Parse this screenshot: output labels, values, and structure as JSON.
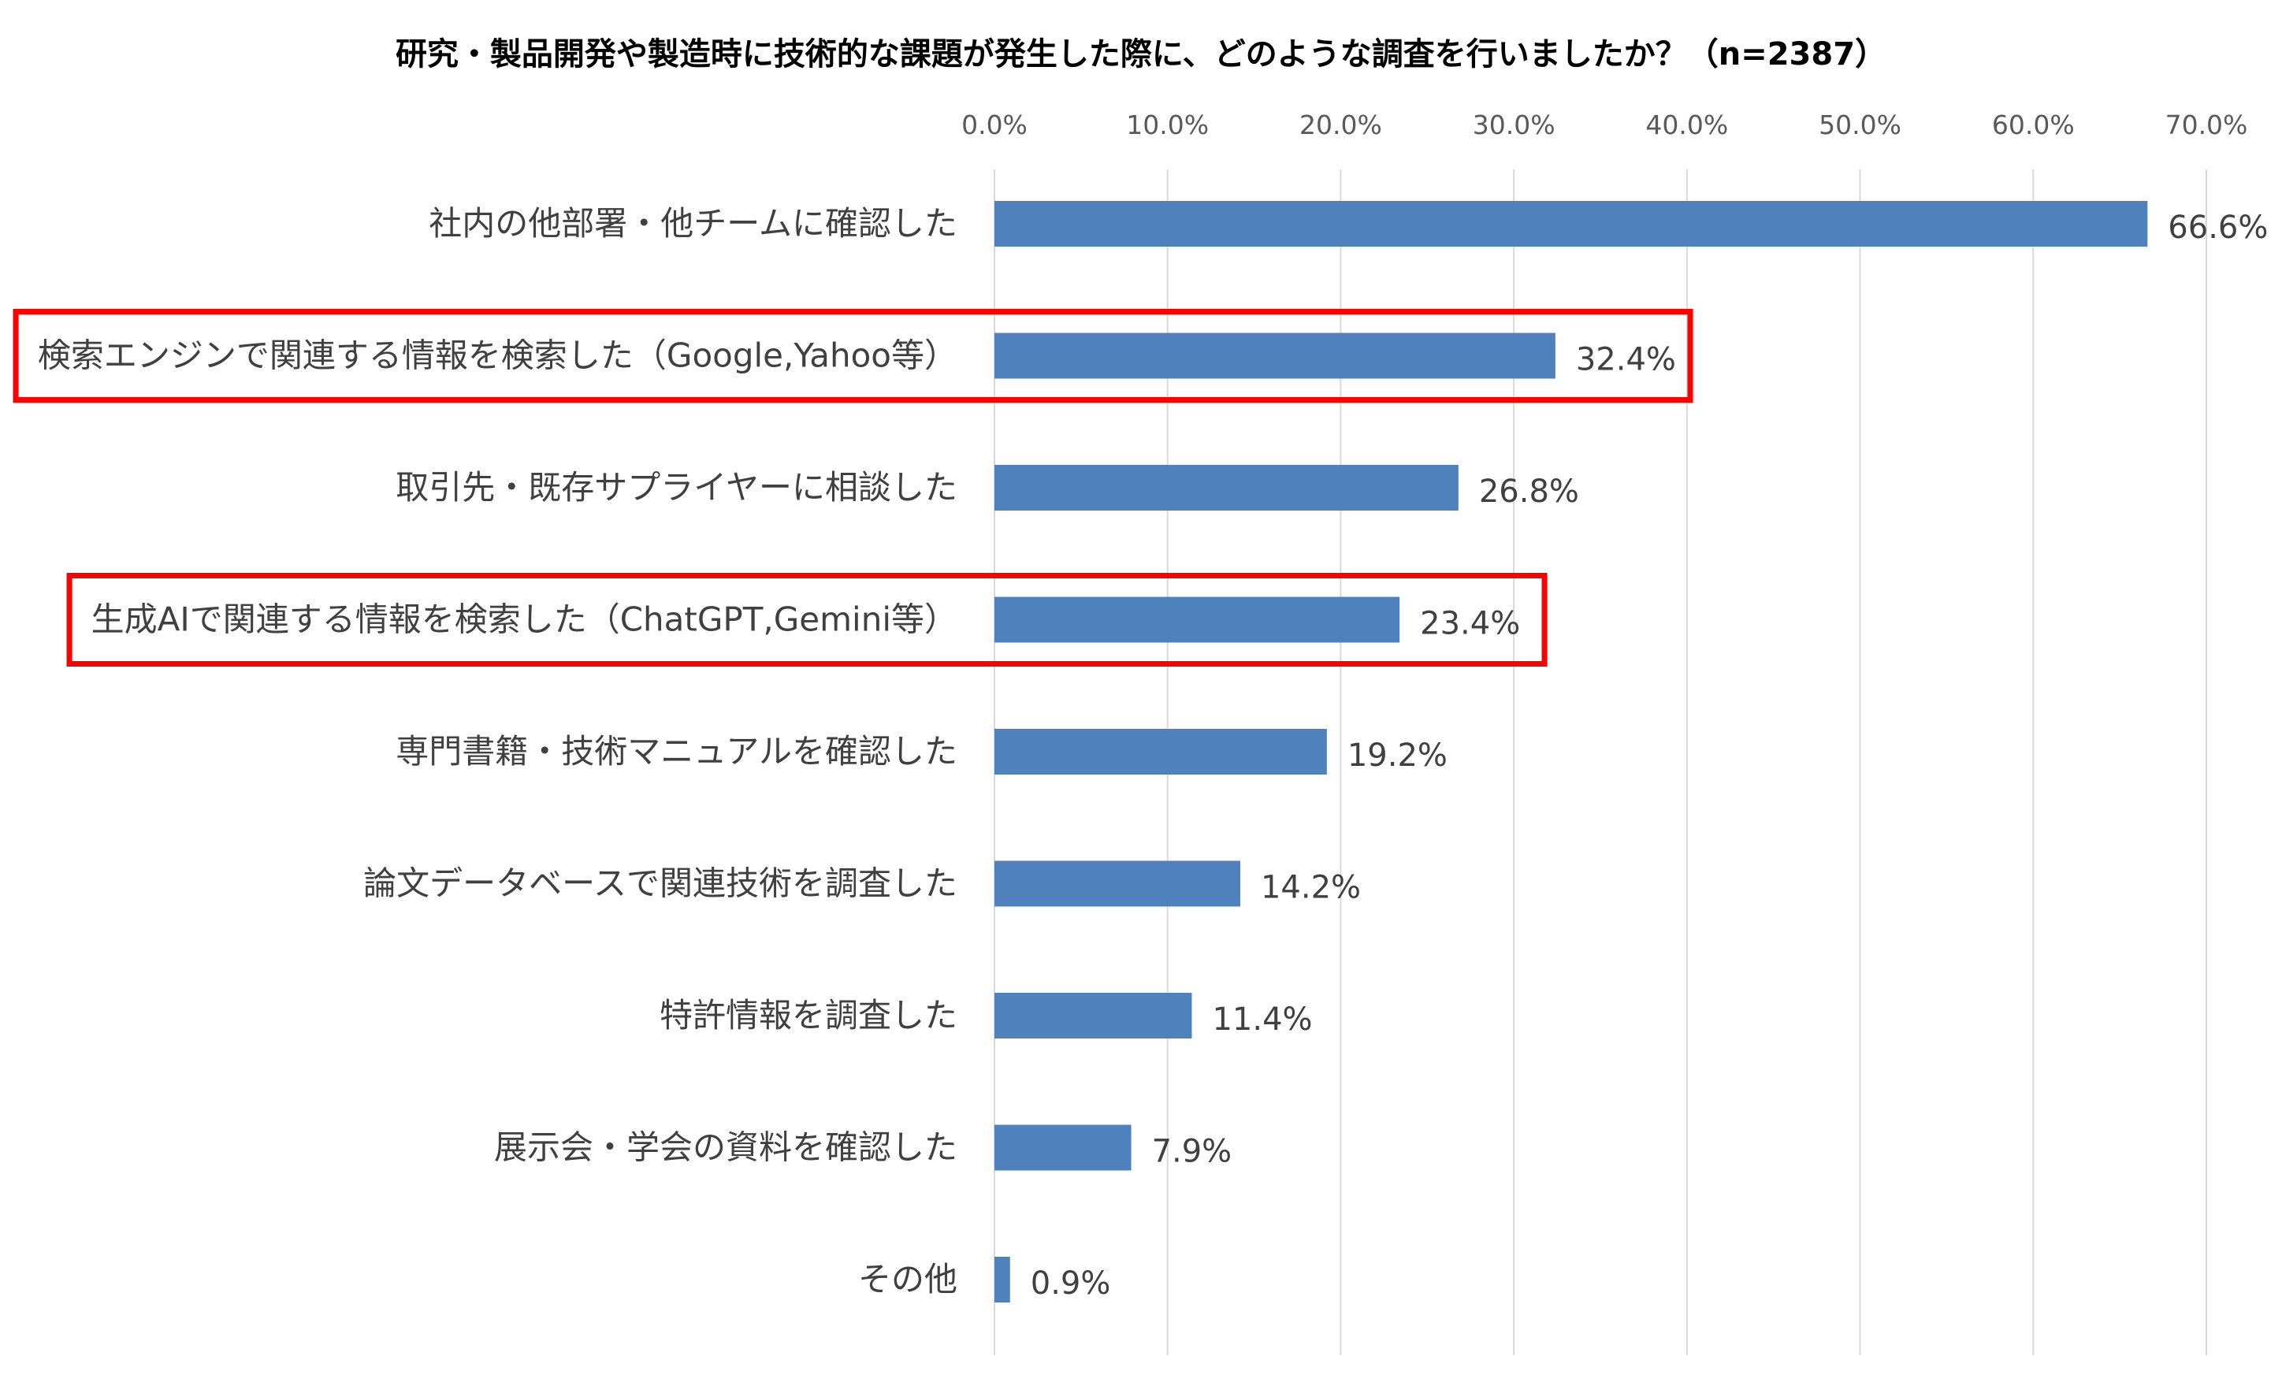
{
  "chart_data": {
    "type": "bar",
    "orientation": "horizontal",
    "title": "研究・製品開発や製造時に技術的な課題が発生した際に、どのような調査を行いましたか？（n=2387）",
    "xlabel": "",
    "ylabel": "",
    "xlim": [
      0,
      70
    ],
    "ticks": [
      0,
      10,
      20,
      30,
      40,
      50,
      60,
      70
    ],
    "tick_labels": [
      "0.0%",
      "10.0%",
      "20.0%",
      "30.0%",
      "40.0%",
      "50.0%",
      "60.0%",
      "70.0%"
    ],
    "grid": true,
    "legend": "none",
    "categories": [
      "社内の他部署・他チームに確認した",
      "検索エンジンで関連する情報を検索した（Google,Yahoo等）",
      "取引先・既存サプライヤーに相談した",
      "生成AIで関連する情報を検索した（ChatGPT,Gemini等）",
      "専門書籍・技術マニュアルを確認した",
      "論文データベースで関連技術を調査した",
      "特許情報を調査した",
      "展示会・学会の資料を確認した",
      "その他"
    ],
    "values": [
      66.6,
      32.4,
      26.8,
      23.4,
      19.2,
      14.2,
      11.4,
      7.9,
      0.9
    ],
    "value_labels": [
      "66.6%",
      "32.4%",
      "26.8%",
      "23.4%",
      "19.2%",
      "14.2%",
      "11.4%",
      "7.9%",
      "0.9%"
    ],
    "highlighted": [
      1,
      3
    ]
  },
  "colors": {
    "bar": "#4f81bd",
    "highlight_box": "#ff0000",
    "grid": "#d9d9d9"
  }
}
